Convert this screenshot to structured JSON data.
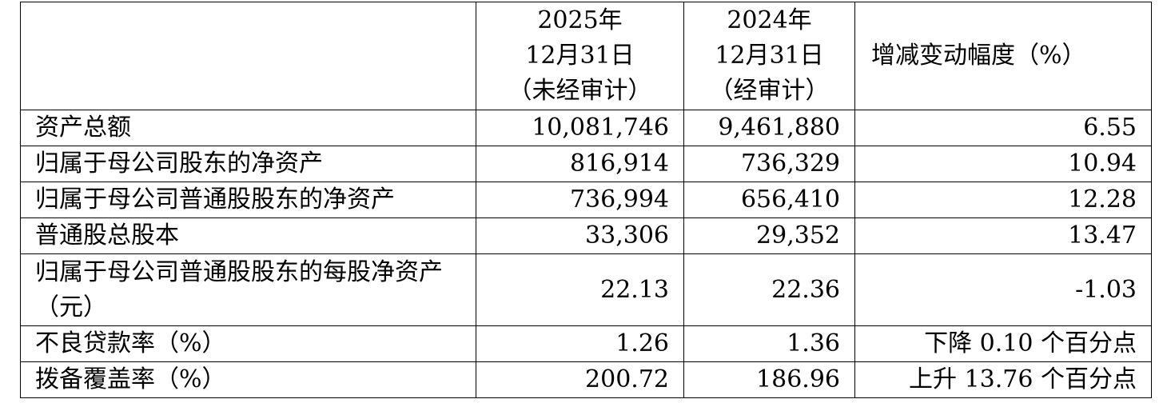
{
  "table": {
    "header": [
      [],
      [
        "2025年",
        "12月31日",
        "（未经审计）"
      ],
      [
        "2024年",
        "12月31日",
        "（经审计）"
      ],
      [
        "增减变动幅度（%）"
      ]
    ],
    "rows": [
      [
        "资产总额",
        "10,081,746",
        "9,461,880",
        "6.55"
      ],
      [
        "归属于母公司股东的净资产",
        "816,914",
        "736,329",
        "10.94"
      ],
      [
        "归属于母公司普通股股东的净资产",
        "736,994",
        "656,410",
        "12.28"
      ],
      [
        "普通股总股本",
        "33,306",
        "29,352",
        "13.47"
      ],
      [
        "归属于母公司普通股股东的每股净资产（元）",
        "22.13",
        "22.36",
        "-1.03"
      ],
      [
        "不良贷款率（%）",
        "1.26",
        "1.36",
        "下降 0.10 个百分点"
      ],
      [
        "拨备覆盖率（%）",
        "200.72",
        "186.96",
        "上升 13.76 个百分点"
      ]
    ]
  }
}
